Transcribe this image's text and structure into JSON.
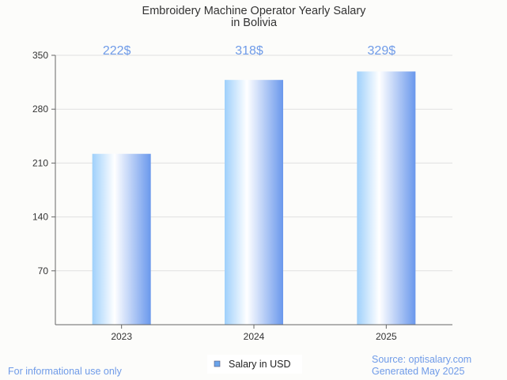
{
  "chart_data": {
    "type": "bar",
    "title_lines": [
      "Embroidery Machine Operator Yearly Salary",
      "in Bolivia"
    ],
    "categories": [
      "2023",
      "2024",
      "2025"
    ],
    "series": [
      {
        "name": "Salary in USD",
        "values": [
          222,
          318,
          329
        ]
      }
    ],
    "data_labels": [
      "222$",
      "318$",
      "329$"
    ],
    "ylim": [
      0,
      350
    ],
    "yticks": [
      70,
      140,
      210,
      280,
      350
    ],
    "grid": true,
    "legend_position": "bottom",
    "colors": {
      "bar_left": "#9fd0fb",
      "bar_mid": "#ffffff",
      "bar_right": "#6a98ec",
      "label": "#6f9be8",
      "legend_swatch": "#6aa4ea"
    }
  },
  "footer": {
    "disclaimer": "For informational use only",
    "source": "Source: optisalary.com",
    "generated": "Generated May 2025"
  }
}
